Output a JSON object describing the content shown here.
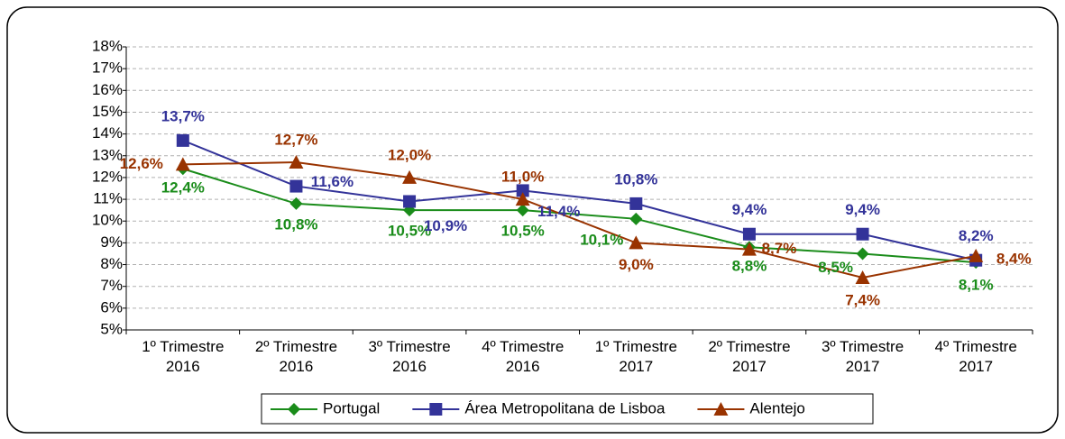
{
  "chart_data": {
    "type": "line",
    "categories": [
      "1º Trimestre 2016",
      "2º Trimestre 2016",
      "3º Trimestre 2016",
      "4º Trimestre 2016",
      "1º Trimestre 2017",
      "2º Trimestre 2017",
      "3º Trimestre 2017",
      "4º Trimestre 2017"
    ],
    "series": [
      {
        "name": "Portugal",
        "color": "#1a8c1a",
        "marker": "diamond",
        "values": [
          12.4,
          10.8,
          10.5,
          10.5,
          10.1,
          8.8,
          8.5,
          8.1
        ],
        "value_labels": [
          "12,4%",
          "10,8%",
          "10,5%",
          "10,5%",
          "10,1%",
          "8,8%",
          "8,5%",
          "8,1%"
        ]
      },
      {
        "name": "Área Metropolitana de Lisboa",
        "color": "#333399",
        "marker": "square",
        "values": [
          13.7,
          11.6,
          10.9,
          11.4,
          10.8,
          9.4,
          9.4,
          8.2
        ],
        "value_labels": [
          "13,7%",
          "11,6%",
          "10,9%",
          "11,4%",
          "10,8%",
          "9,4%",
          "9,4%",
          "8,2%"
        ]
      },
      {
        "name": "Alentejo",
        "color": "#993300",
        "marker": "triangle",
        "values": [
          12.6,
          12.7,
          12.0,
          11.0,
          9.0,
          8.7,
          7.4,
          8.4
        ],
        "value_labels": [
          "12,6%",
          "12,7%",
          "12,0%",
          "11,0%",
          "9,0%",
          "8,7%",
          "7,4%",
          "8,4%"
        ]
      }
    ],
    "ylim": [
      5,
      18
    ],
    "yticks": [
      {
        "value": 5,
        "label": "5%"
      },
      {
        "value": 6,
        "label": "6%"
      },
      {
        "value": 7,
        "label": "7%"
      },
      {
        "value": 8,
        "label": "8%"
      },
      {
        "value": 9,
        "label": "9%"
      },
      {
        "value": 10,
        "label": "10%"
      },
      {
        "value": 11,
        "label": "11%"
      },
      {
        "value": 12,
        "label": "12%"
      },
      {
        "value": 13,
        "label": "13%"
      },
      {
        "value": 14,
        "label": "14%"
      },
      {
        "value": 15,
        "label": "15%"
      },
      {
        "value": 16,
        "label": "16%"
      },
      {
        "value": 17,
        "label": "17%"
      },
      {
        "value": 18,
        "label": "18%"
      }
    ],
    "grid": true,
    "legend": "bottom"
  }
}
